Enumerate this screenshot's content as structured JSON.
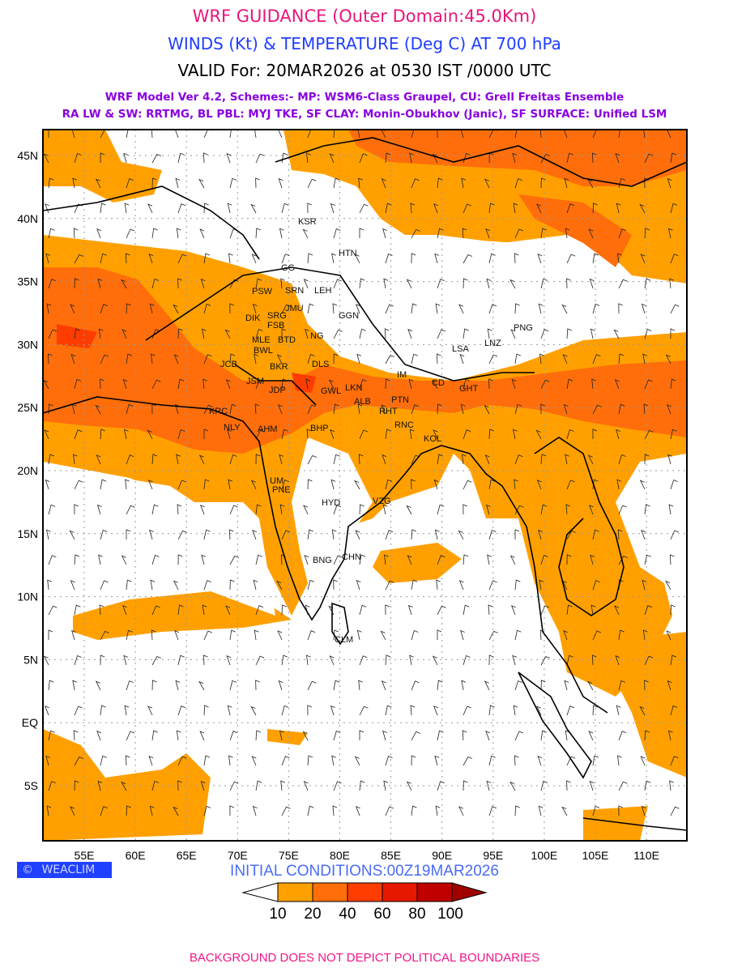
{
  "header": {
    "title": "WRF GUIDANCE (Outer Domain:45.0Km)",
    "subtitle": "WINDS (Kt) & TEMPERATURE (Deg C) AT 700 hPa",
    "valid": "VALID For: 20MAR2026 at 0530 IST /0000 UTC",
    "model_line1": "WRF Model Ver 4.2, Schemes:- MP: WSM6-Class Graupel, CU: Grell Freitas Ensemble",
    "model_line2": "RA LW & SW: RRTMG, BL PBL: MYJ TKE, SF CLAY: Monin-Obukhov (Janic), SF SURFACE: Unified LSM"
  },
  "map": {
    "lat_labels": [
      "45N",
      "40N",
      "35N",
      "30N",
      "25N",
      "20N",
      "15N",
      "10N",
      "5N",
      "EQ",
      "5S"
    ],
    "lon_labels": [
      "55E",
      "60E",
      "65E",
      "70E",
      "75E",
      "80E",
      "85E",
      "90E",
      "95E",
      "100E",
      "105E",
      "110E"
    ],
    "cities": [
      "KSR",
      "HTN",
      "GGN",
      "PNG",
      "LSA",
      "LNZ",
      "GG",
      "PSW",
      "SRN",
      "LEH",
      "JMU",
      "DIK",
      "SRG",
      "FSB",
      "MLE",
      "BTD",
      "NG",
      "BWL",
      "JCB",
      "DLS",
      "BKR",
      "JSM",
      "JDP",
      "GWL",
      "LKN",
      "ALB",
      "PTN",
      "RHT",
      "KRC",
      "NLY",
      "AHM",
      "BHP",
      "RNC",
      "KOL",
      "GHT",
      "IM",
      "CD",
      "UM",
      "PNE",
      "HYD",
      "VZG",
      "CHN",
      "BNG",
      "CLM"
    ]
  },
  "logo": {
    "text": "WEACLIM",
    "symbol": "©"
  },
  "initial_conditions": "INITIAL CONDITIONS:00Z19MAR2026",
  "legend": {
    "labels": [
      "10",
      "20",
      "40",
      "60",
      "80",
      "100"
    ],
    "colors": [
      "#ffffff",
      "#ffa000",
      "#ff6e0a",
      "#ff3c00",
      "#e61900",
      "#c00000",
      "#a00000"
    ]
  },
  "footer": "BACKGROUND DOES NOT DEPICT POLITICAL BOUNDARIES"
}
